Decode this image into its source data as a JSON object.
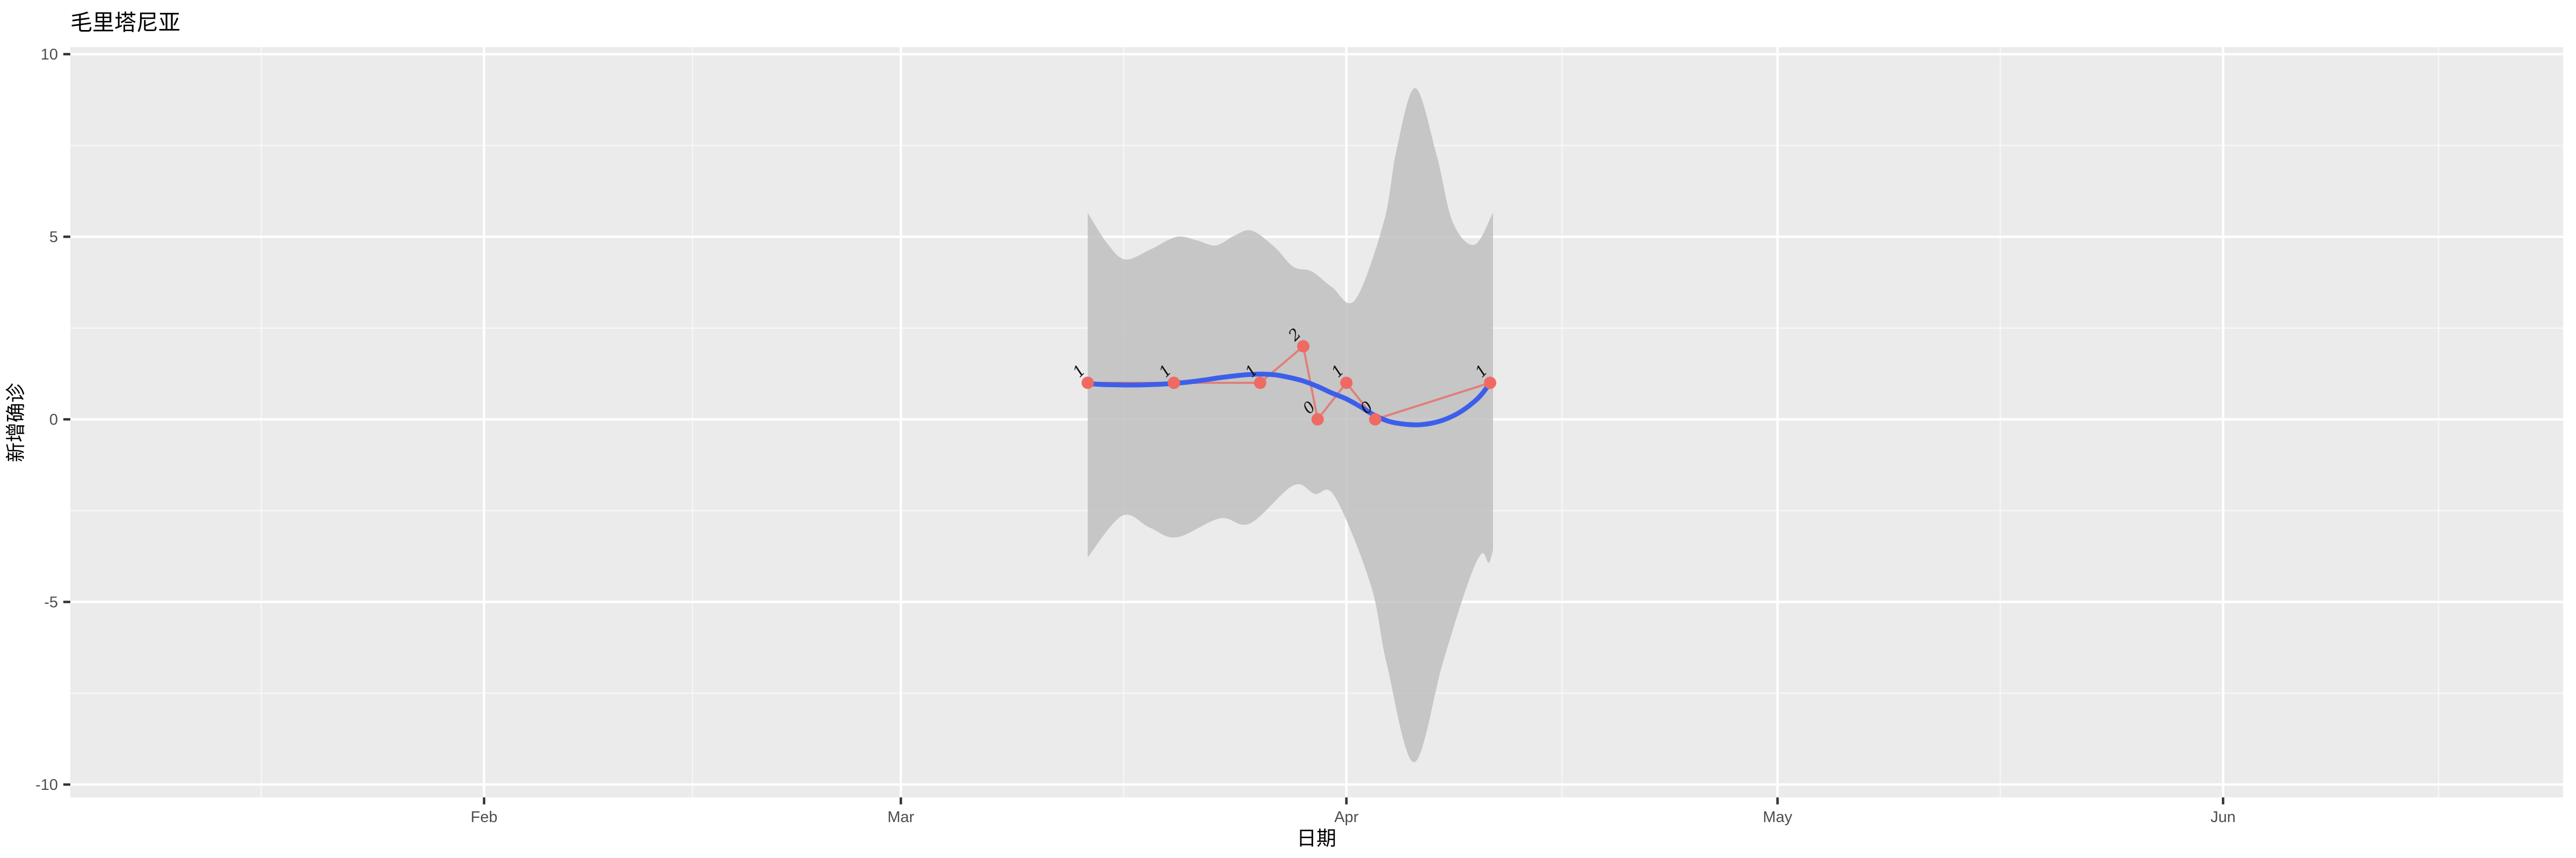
{
  "title": "毛里塔尼亚",
  "axes": {
    "x": {
      "title": "日期",
      "tick_labels": [
        "Feb",
        "Mar",
        "Apr",
        "May",
        "Jun"
      ]
    },
    "y": {
      "title": "新增确诊",
      "tick_labels": [
        "10",
        "5",
        "0",
        "-5",
        "-10"
      ]
    }
  },
  "colors": {
    "panel_background": "#EBEBEB",
    "grid_major": "#FFFFFF",
    "grid_minor": "#F5F5F5",
    "ribbon_fill": "#BDBDBD",
    "smooth_line": "#3C5FEB",
    "data_line": "#E07F7A",
    "data_point": "#EE6A63",
    "tick_mark": "#333333",
    "tick_text": "#4D4D4D",
    "label_text": "#111111"
  },
  "chart_data": {
    "type": "line",
    "title": "毛里塔尼亚",
    "xlabel": "日期",
    "ylabel": "新增确诊",
    "ylim": [
      -10,
      10
    ],
    "grid": "on",
    "legend": "none",
    "x_axis": {
      "unit": "date (2020)",
      "major_ticks": [
        {
          "label": "Feb",
          "t": 31
        },
        {
          "label": "Mar",
          "t": 60
        },
        {
          "label": "Apr",
          "t": 91
        },
        {
          "label": "May",
          "t": 121
        },
        {
          "label": "Jun",
          "t": 152
        }
      ],
      "minor_ticks_t": [
        15.5,
        45.5,
        75.5,
        106,
        136.5,
        167
      ]
    },
    "y_axis": {
      "major_ticks": [
        10,
        5,
        0,
        -5,
        -10
      ],
      "minor_ticks": [
        7.5,
        2.5,
        -2.5,
        -7.5
      ]
    },
    "series": [
      {
        "name": "observed-new-confirmed",
        "style": "points+line with value labels",
        "points": [
          {
            "date": "2020-03-14",
            "value": 1
          },
          {
            "date": "2020-03-20",
            "value": 1
          },
          {
            "date": "2020-03-26",
            "value": 1
          },
          {
            "date": "2020-03-29",
            "value": 2
          },
          {
            "date": "2020-03-30",
            "value": 0
          },
          {
            "date": "2020-04-01",
            "value": 1
          },
          {
            "date": "2020-04-03",
            "value": 0
          },
          {
            "date": "2020-04-11",
            "value": 1
          }
        ]
      },
      {
        "name": "loess-smooth-trend",
        "style": "smooth line",
        "points_tv": [
          [
            73,
            0.98
          ],
          [
            74,
            0.955
          ],
          [
            75,
            0.945
          ],
          [
            76,
            0.94
          ],
          [
            77,
            0.945
          ],
          [
            78,
            0.96
          ],
          [
            79,
            0.985
          ],
          [
            80,
            1.02
          ],
          [
            81,
            1.07
          ],
          [
            82,
            1.13
          ],
          [
            83,
            1.18
          ],
          [
            84,
            1.22
          ],
          [
            85,
            1.24
          ],
          [
            86,
            1.22
          ],
          [
            87,
            1.15
          ],
          [
            88,
            1.05
          ],
          [
            89,
            0.9
          ],
          [
            90,
            0.72
          ],
          [
            91,
            0.56
          ],
          [
            92,
            0.34
          ],
          [
            93,
            0.1
          ],
          [
            94,
            -0.06
          ],
          [
            95,
            -0.13
          ],
          [
            96,
            -0.15
          ],
          [
            97,
            -0.1
          ],
          [
            98,
            0.02
          ],
          [
            99,
            0.22
          ],
          [
            100,
            0.52
          ],
          [
            100.5,
            0.73
          ],
          [
            101,
            1.0
          ]
        ]
      }
    ],
    "confidence_ribbon": {
      "name": "smooth-confidence-band",
      "upper_tv": [
        [
          73,
          5.66
        ],
        [
          74.3,
          4.85
        ],
        [
          75.6,
          4.38
        ],
        [
          77.4,
          4.66
        ],
        [
          79.2,
          5.0
        ],
        [
          80.6,
          4.9
        ],
        [
          81.9,
          4.76
        ],
        [
          83.2,
          5.03
        ],
        [
          84.4,
          5.17
        ],
        [
          86,
          4.72
        ],
        [
          87.3,
          4.18
        ],
        [
          88.6,
          4.05
        ],
        [
          90,
          3.62
        ],
        [
          91.6,
          3.27
        ],
        [
          93.6,
          5.4
        ],
        [
          94.5,
          7.4
        ],
        [
          95.8,
          9.07
        ],
        [
          97.3,
          7.2
        ],
        [
          98.4,
          5.4
        ],
        [
          99.9,
          4.78
        ],
        [
          101.2,
          5.66
        ]
      ],
      "lower_tv": [
        [
          73,
          -3.78
        ],
        [
          75.4,
          -2.64
        ],
        [
          77.3,
          -2.96
        ],
        [
          79.2,
          -3.23
        ],
        [
          82.2,
          -2.71
        ],
        [
          84.3,
          -2.85
        ],
        [
          87.3,
          -1.81
        ],
        [
          88.8,
          -2.04
        ],
        [
          90.2,
          -2.12
        ],
        [
          92.7,
          -4.54
        ],
        [
          93.8,
          -6.68
        ],
        [
          95.7,
          -9.39
        ],
        [
          97.7,
          -6.68
        ],
        [
          99.4,
          -4.55
        ],
        [
          100.4,
          -3.68
        ],
        [
          100.9,
          -3.93
        ],
        [
          101.2,
          -3.58
        ]
      ]
    }
  }
}
